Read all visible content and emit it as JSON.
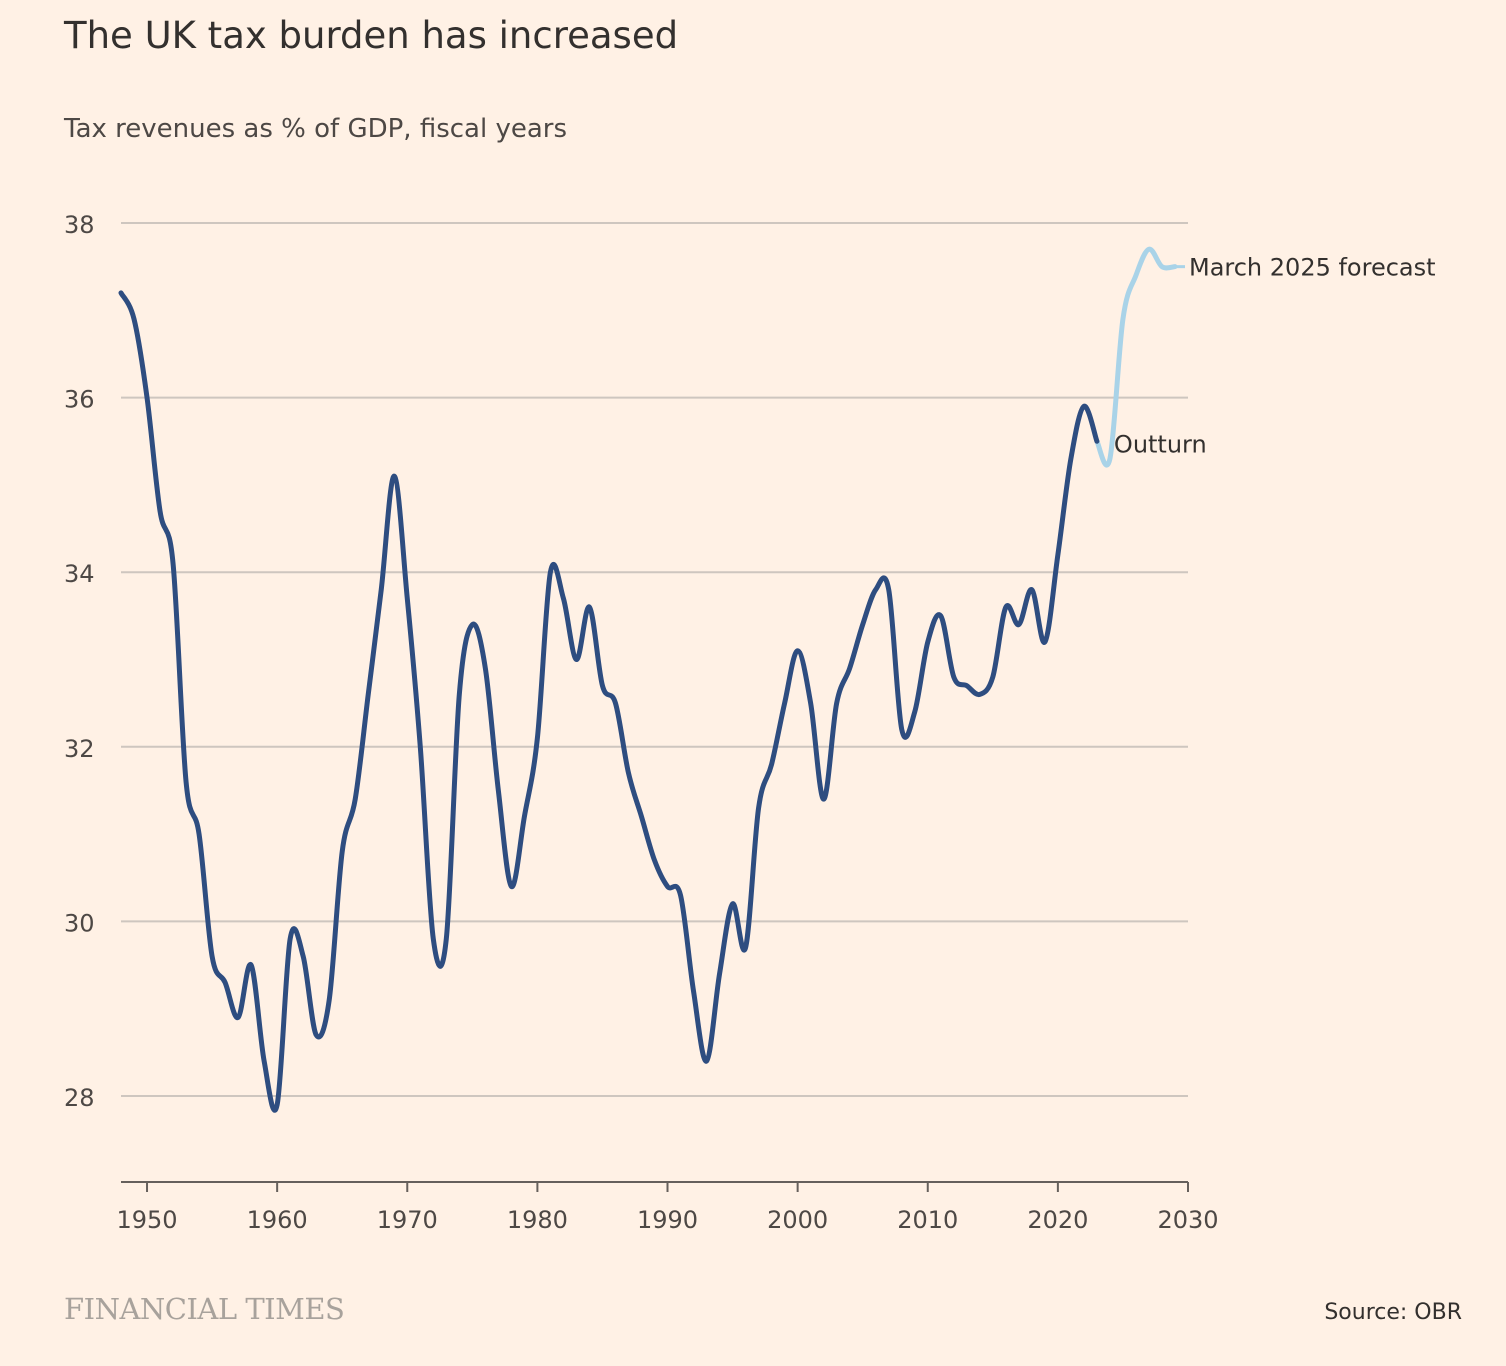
{
  "header": {
    "title": "The UK tax burden has increased",
    "subtitle": "Tax revenues as % of GDP, fiscal years"
  },
  "footer": {
    "logo_text": "FINANCIAL TIMES",
    "source": "Source: OBR"
  },
  "colors": {
    "background": "#fff1e5",
    "gridline": "#cec6bf",
    "outturn": "#2e4d80",
    "forecast": "#a9d3e8",
    "text": "#33302e"
  },
  "chart_data": {
    "type": "line",
    "title": "The UK tax burden has increased",
    "subtitle": "Tax revenues as % of GDP, fiscal years",
    "xlabel": "",
    "ylabel": "",
    "xlim": [
      1948,
      2030
    ],
    "ylim": [
      27,
      38
    ],
    "x_ticks": [
      1950,
      1960,
      1970,
      1980,
      1990,
      2000,
      2010,
      2020,
      2030
    ],
    "y_ticks": [
      28,
      30,
      32,
      34,
      36,
      38
    ],
    "grid": "horizontal",
    "series": [
      {
        "name": "Outturn",
        "color": "#2e4d80",
        "x": [
          1948,
          1949,
          1950,
          1951,
          1952,
          1953,
          1954,
          1955,
          1956,
          1957,
          1958,
          1959,
          1960,
          1961,
          1962,
          1963,
          1964,
          1965,
          1966,
          1967,
          1968,
          1969,
          1970,
          1971,
          1972,
          1973,
          1974,
          1975,
          1976,
          1977,
          1978,
          1979,
          1980,
          1981,
          1982,
          1983,
          1984,
          1985,
          1986,
          1987,
          1988,
          1989,
          1990,
          1991,
          1992,
          1993,
          1994,
          1995,
          1996,
          1997,
          1998,
          1999,
          2000,
          2001,
          2002,
          2003,
          2004,
          2005,
          2006,
          2007,
          2008,
          2009,
          2010,
          2011,
          2012,
          2013,
          2014,
          2015,
          2016,
          2017,
          2018,
          2019,
          2020,
          2021,
          2022,
          2023
        ],
        "values": [
          37.2,
          36.9,
          36.0,
          34.7,
          34.1,
          31.6,
          31.0,
          29.6,
          29.3,
          28.9,
          29.5,
          28.4,
          27.9,
          29.8,
          29.6,
          28.7,
          29.1,
          30.8,
          31.4,
          32.6,
          33.8,
          35.1,
          33.7,
          32.0,
          29.8,
          29.8,
          32.6,
          33.4,
          32.9,
          31.5,
          30.4,
          31.2,
          32.1,
          34.0,
          33.7,
          33.0,
          33.6,
          32.7,
          32.5,
          31.7,
          31.2,
          30.7,
          30.4,
          30.3,
          29.2,
          28.4,
          29.4,
          30.2,
          29.7,
          31.3,
          31.8,
          32.5,
          33.1,
          32.5,
          31.4,
          32.5,
          32.9,
          33.4,
          33.8,
          33.8,
          32.2,
          32.4,
          33.2,
          33.5,
          32.8,
          32.7,
          32.6,
          32.8,
          33.6,
          33.4,
          33.8,
          33.2,
          34.2,
          35.3,
          35.9,
          35.5
        ]
      },
      {
        "name": "March 2025 forecast",
        "color": "#a9d3e8",
        "x": [
          2023,
          2024,
          2025,
          2026,
          2027,
          2028,
          2029
        ],
        "values": [
          35.5,
          35.3,
          36.9,
          37.4,
          37.7,
          37.5,
          37.5
        ]
      }
    ],
    "annotations": [
      {
        "text": "March 2025 forecast",
        "x": 2029,
        "y": 37.5
      },
      {
        "text": "Outturn",
        "x": 2024,
        "y": 35.3
      }
    ]
  }
}
